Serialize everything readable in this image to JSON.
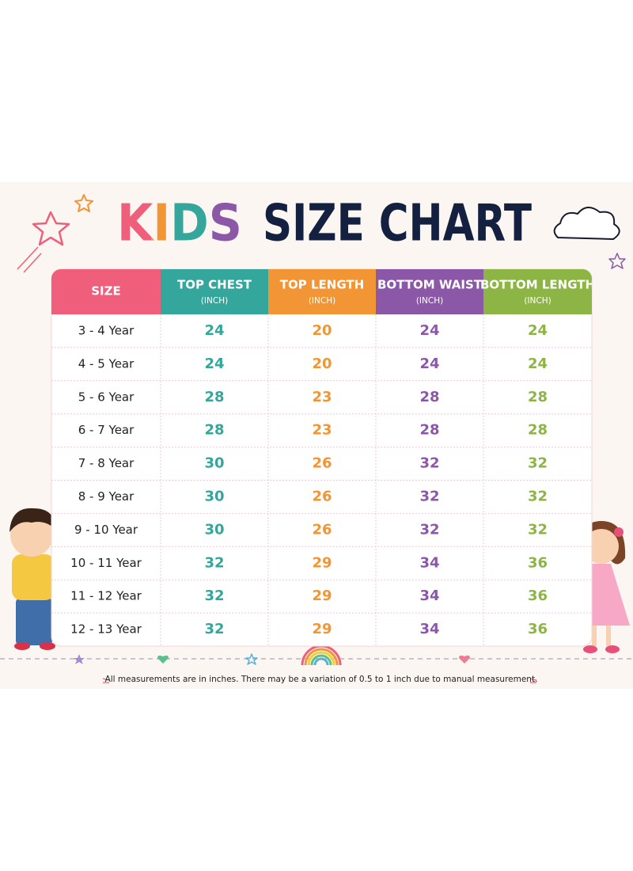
{
  "title": {
    "highlight": "KIDS",
    "rest": "SIZE CHART"
  },
  "table": {
    "columns": [
      {
        "name": "SIZE",
        "color": "#ef5f7b"
      },
      {
        "name": "TOP CHEST",
        "unit": "(INCH)",
        "color": "#35a69b"
      },
      {
        "name": "TOP LENGTH",
        "unit": "(INCH)",
        "color": "#f29534"
      },
      {
        "name": "BOTTOM WAIST",
        "unit": "(INCH)",
        "color": "#8b58a8"
      },
      {
        "name": "BOTTOM LENGTH",
        "unit": "(INCH)",
        "color": "#8db545"
      }
    ],
    "rows": [
      [
        "3 - 4 Year",
        24,
        20,
        24,
        24
      ],
      [
        "4 - 5 Year",
        24,
        20,
        24,
        24
      ],
      [
        "5 - 6 Year",
        28,
        23,
        28,
        28
      ],
      [
        "6 - 7 Year",
        28,
        23,
        28,
        28
      ],
      [
        "7 - 8 Year",
        30,
        26,
        32,
        32
      ],
      [
        "8 - 9 Year",
        30,
        26,
        32,
        32
      ],
      [
        "9 - 10 Year",
        30,
        26,
        32,
        32
      ],
      [
        "10 - 11 Year",
        32,
        29,
        34,
        36
      ],
      [
        "11 - 12 Year",
        32,
        29,
        34,
        36
      ],
      [
        "12 - 13 Year",
        32,
        29,
        34,
        36
      ]
    ]
  },
  "footnote": "All measurements are in inches. There may be a variation of 0.5 to 1 inch due to manual measurement."
}
